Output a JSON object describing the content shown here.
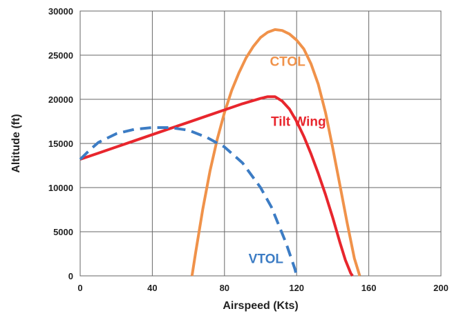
{
  "chart_data": {
    "type": "line",
    "title": "",
    "xlabel": "Airspeed (Kts)",
    "ylabel": "Altitude (ft)",
    "xlim": [
      0,
      200
    ],
    "ylim": [
      0,
      30000
    ],
    "x_ticks": [
      "0",
      "40",
      "80",
      "120",
      "160",
      "200"
    ],
    "y_ticks": [
      "0",
      "5000",
      "10000",
      "15000",
      "20000",
      "25000",
      "30000"
    ],
    "grid": true,
    "legend": "none (series labelled directly on chart)",
    "series": [
      {
        "name": "CTOL",
        "color": "#F0924A",
        "dash": "solid",
        "x": [
          62,
          64,
          68,
          72,
          76,
          80,
          84,
          88,
          92,
          96,
          100,
          104,
          108,
          112,
          116,
          120,
          124,
          128,
          132,
          136,
          140,
          144,
          148,
          152,
          155
        ],
        "y": [
          0,
          2600,
          7600,
          11900,
          15500,
          18500,
          21000,
          23000,
          24700,
          26000,
          27000,
          27600,
          27900,
          27800,
          27400,
          26700,
          25700,
          24000,
          21700,
          18500,
          14500,
          10300,
          6000,
          2000,
          0
        ]
      },
      {
        "name": "Tilt Wing",
        "color": "#E8262D",
        "dash": "solid",
        "x": [
          0,
          10,
          20,
          30,
          40,
          50,
          60,
          70,
          80,
          90,
          100,
          104,
          108,
          112,
          116,
          120,
          124,
          128,
          132,
          136,
          140,
          144,
          147,
          150,
          151
        ],
        "y": [
          13200,
          13900,
          14600,
          15300,
          16000,
          16700,
          17400,
          18100,
          18800,
          19500,
          20100,
          20300,
          20300,
          19800,
          18900,
          17500,
          15800,
          13800,
          11600,
          9200,
          6600,
          3800,
          1800,
          300,
          0
        ]
      },
      {
        "name": "VTOL",
        "color": "#3C7CC4",
        "dash": "dashed",
        "x": [
          0,
          5,
          10,
          20,
          30,
          40,
          50,
          60,
          70,
          80,
          90,
          100,
          106,
          110,
          114,
          117,
          119,
          120
        ],
        "y": [
          13200,
          14200,
          15100,
          16100,
          16600,
          16800,
          16800,
          16500,
          15700,
          14600,
          12800,
          10000,
          7800,
          5800,
          3800,
          2000,
          800,
          0
        ]
      }
    ],
    "annotations": [
      {
        "text": "CTOL",
        "x": 115,
        "y": 23800,
        "color": "#F0924A"
      },
      {
        "text": "Tilt Wing",
        "x": 121,
        "y": 17000,
        "color": "#E8262D"
      },
      {
        "text": "VTOL",
        "x": 103,
        "y": 1450,
        "color": "#3C7CC4"
      }
    ]
  }
}
